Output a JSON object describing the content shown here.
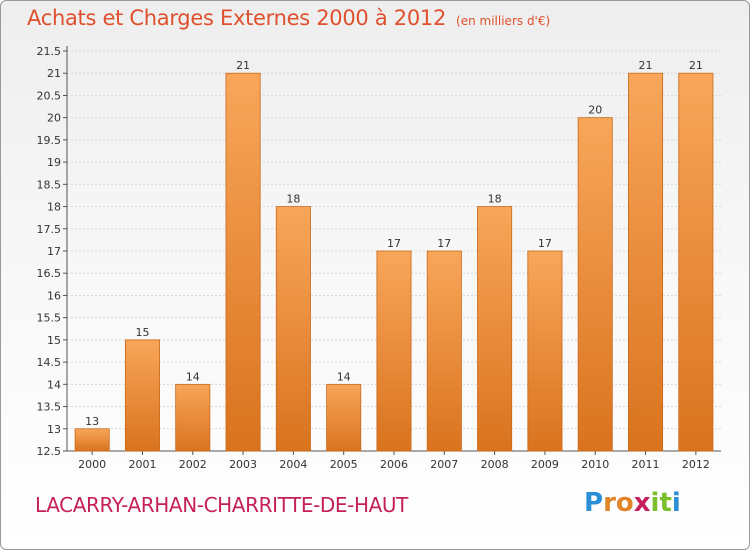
{
  "header": {
    "title": "Achats et Charges Externes 2000 à 2012",
    "subtitle": "(en milliers d'€)"
  },
  "footer": {
    "commune": "LACARRY-ARHAN-CHARRITTE-DE-HAUT",
    "logo": {
      "letters": [
        "P",
        "r",
        "o",
        "x",
        "i",
        "t",
        "i"
      ],
      "colors": [
        "#2a8fd6",
        "#e0852a",
        "#e0852a",
        "#c5205b",
        "#7bbf2a",
        "#7bbf2a",
        "#2a8fd6"
      ]
    }
  },
  "colors": {
    "bar_top": "#f8a65a",
    "bar_bottom": "#d9731e",
    "bar_stroke": "#c9681a",
    "title": "#e0502c",
    "commune": "#c5205b"
  },
  "chart_data": {
    "type": "bar",
    "categories": [
      "2000",
      "2001",
      "2002",
      "2003",
      "2004",
      "2005",
      "2006",
      "2007",
      "2008",
      "2009",
      "2010",
      "2011",
      "2012"
    ],
    "values": [
      13,
      15,
      14,
      21,
      18,
      14,
      17,
      17,
      18,
      17,
      20,
      21,
      21
    ],
    "data_labels": [
      "13",
      "15",
      "14",
      "21",
      "18",
      "14",
      "17",
      "17",
      "18",
      "17",
      "20",
      "21",
      "21"
    ],
    "ylim": [
      12.5,
      21.5
    ],
    "yticks": [
      12.5,
      13,
      13.5,
      14,
      14.5,
      15,
      15.5,
      16,
      16.5,
      17,
      17.5,
      18,
      18.5,
      19,
      19.5,
      20,
      20.5,
      21,
      21.5
    ],
    "ytick_labels": [
      "12.5",
      "13",
      "13.5",
      "14",
      "14.5",
      "15",
      "15.5",
      "16",
      "16.5",
      "17",
      "17.5",
      "18",
      "18.5",
      "19",
      "19.5",
      "20",
      "20.5",
      "21",
      "21.5"
    ],
    "grid": true,
    "legend": "none"
  }
}
